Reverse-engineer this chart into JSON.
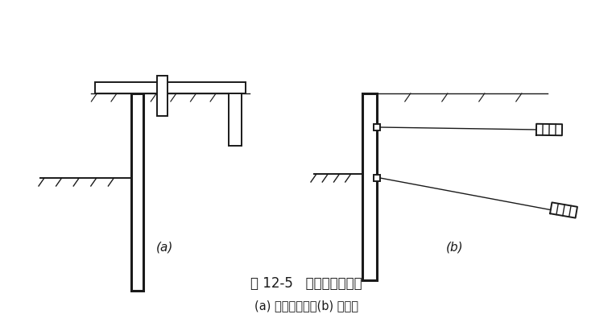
{
  "title1": "图 12-5   拉锚式支护结构",
  "title2": "(a) 地面拉锚式；(b) 锚杆式",
  "label_a": "(a)",
  "label_b": "(b)",
  "bg_color": "#ffffff",
  "line_color": "#1a1a1a",
  "fig_width": 7.6,
  "fig_height": 4.16,
  "dpi": 100
}
